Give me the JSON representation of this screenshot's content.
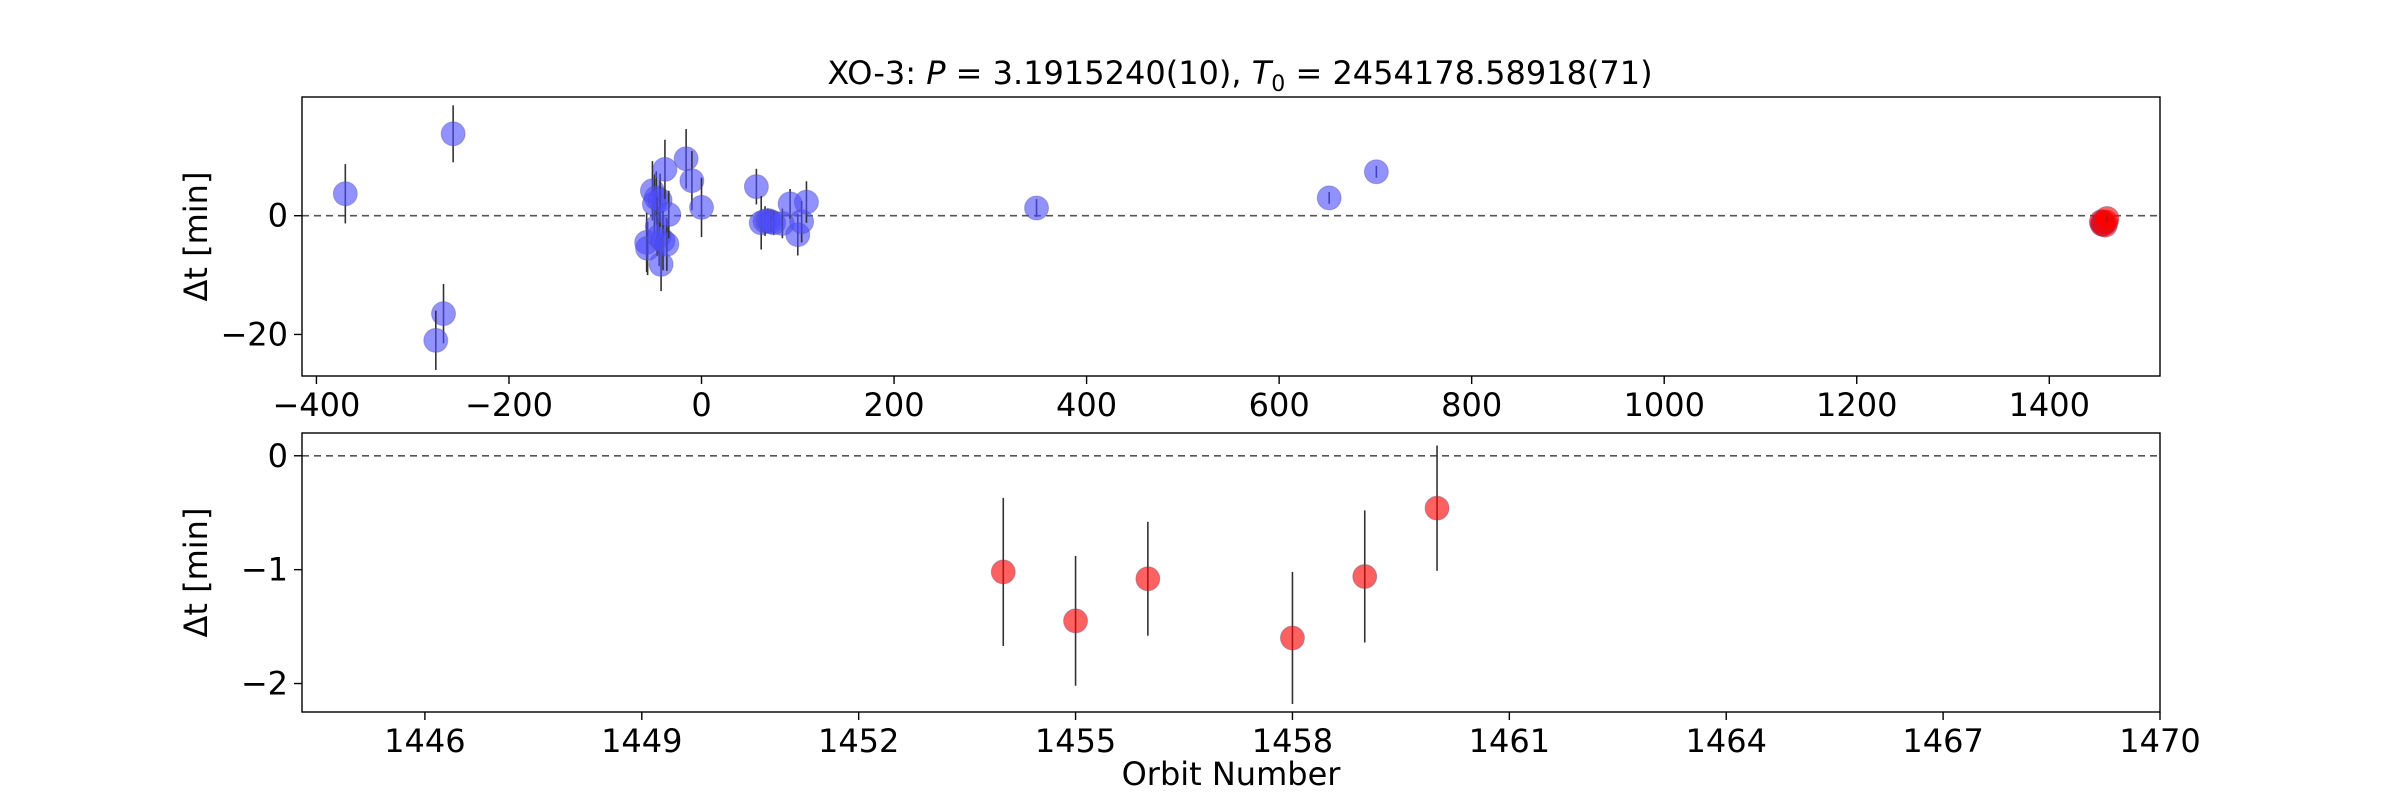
{
  "chart_data": [
    {
      "type": "scatter",
      "title_prefix": "XO-3: ",
      "title_math": [
        {
          "text": "P",
          "italic": true
        },
        {
          "text": " = 3.1915240(10), ",
          "italic": false
        },
        {
          "text": "T",
          "italic": true
        },
        {
          "text": "0",
          "sub": true
        },
        {
          "text": " = 2454178.58918(71)",
          "italic": false
        }
      ],
      "xlabel": "",
      "ylabel": "Δt [min]",
      "xlim": [
        -415,
        1515
      ],
      "ylim": [
        -27,
        20
      ],
      "xticks": [
        -400,
        -200,
        0,
        200,
        400,
        600,
        800,
        1000,
        1200,
        1400
      ],
      "yticks": [
        -20,
        0
      ],
      "reference_line": 0,
      "grid": false,
      "series": [
        {
          "color": "#4d4dff",
          "points": [
            {
              "x": -370,
              "y": 3.7,
              "err": 5.0
            },
            {
              "x": -258,
              "y": 13.8,
              "err": 4.8
            },
            {
              "x": -268,
              "y": -16.5,
              "err": 5.0
            },
            {
              "x": -276,
              "y": -21.0,
              "err": 5.0
            },
            {
              "x": -57,
              "y": -4.5,
              "err": 5.0
            },
            {
              "x": -56,
              "y": -5.5,
              "err": 4.5
            },
            {
              "x": -51,
              "y": 4.2,
              "err": 5.0
            },
            {
              "x": -49,
              "y": 2.0,
              "err": 5.0
            },
            {
              "x": -47,
              "y": 3.0,
              "err": 4.5
            },
            {
              "x": -46,
              "y": -1.8,
              "err": 5.0
            },
            {
              "x": -44,
              "y": -3.5,
              "err": 5.0
            },
            {
              "x": -43,
              "y": 2.6,
              "err": 4.5
            },
            {
              "x": -42,
              "y": -8.2,
              "err": 4.5
            },
            {
              "x": -40,
              "y": -4.2,
              "err": 5.0
            },
            {
              "x": -38,
              "y": 7.8,
              "err": 5.0
            },
            {
              "x": -36,
              "y": -4.8,
              "err": 4.5
            },
            {
              "x": -34,
              "y": 0.2,
              "err": 4.0
            },
            {
              "x": -16,
              "y": 9.6,
              "err": 5.0
            },
            {
              "x": -10,
              "y": 5.9,
              "err": 5.0
            },
            {
              "x": 0,
              "y": 1.4,
              "err": 5.0
            },
            {
              "x": 57,
              "y": 4.9,
              "err": 3.0
            },
            {
              "x": 62,
              "y": -1.2,
              "err": 4.5
            },
            {
              "x": 66,
              "y": -0.9,
              "err": 2.5
            },
            {
              "x": 69,
              "y": -0.8,
              "err": 2.0
            },
            {
              "x": 72,
              "y": -1.0,
              "err": 2.0
            },
            {
              "x": 75,
              "y": -1.2,
              "err": 2.0
            },
            {
              "x": 84,
              "y": -1.3,
              "err": 2.5
            },
            {
              "x": 92,
              "y": 2.0,
              "err": 2.5
            },
            {
              "x": 100,
              "y": -3.2,
              "err": 3.5
            },
            {
              "x": 104,
              "y": -1.0,
              "err": 3.5
            },
            {
              "x": 109,
              "y": 2.3,
              "err": 3.5
            },
            {
              "x": 348,
              "y": 1.3,
              "err": 1.5
            },
            {
              "x": 652,
              "y": 3.0,
              "err": 1.0
            },
            {
              "x": 701,
              "y": 7.4,
              "err": 1.0
            },
            {
              "x": 1456,
              "y": -1.4,
              "err": 1.0
            }
          ]
        },
        {
          "color": "#ff0000",
          "points": [
            {
              "x": 1454,
              "y": -1.02,
              "err": 0.65
            },
            {
              "x": 1455,
              "y": -1.45,
              "err": 0.57
            },
            {
              "x": 1456,
              "y": -1.08,
              "err": 0.5
            },
            {
              "x": 1458,
              "y": -1.6,
              "err": 0.58
            },
            {
              "x": 1459,
              "y": -1.06,
              "err": 0.58
            },
            {
              "x": 1460,
              "y": -0.46,
              "err": 0.55
            }
          ]
        }
      ]
    },
    {
      "type": "scatter",
      "xlabel": "Orbit Number",
      "ylabel": "Δt [min]",
      "xlim": [
        1444.3,
        1470
      ],
      "ylim": [
        -2.25,
        0.2
      ],
      "xticks": [
        1446,
        1449,
        1452,
        1455,
        1458,
        1461,
        1464,
        1467,
        1470
      ],
      "yticks": [
        -2,
        -1,
        0
      ],
      "reference_line": 0,
      "grid": false,
      "series": [
        {
          "color": "#ff0000",
          "points": [
            {
              "x": 1454,
              "y": -1.02,
              "err": 0.65
            },
            {
              "x": 1455,
              "y": -1.45,
              "err": 0.57
            },
            {
              "x": 1456,
              "y": -1.08,
              "err": 0.5
            },
            {
              "x": 1458,
              "y": -1.6,
              "err": 0.58
            },
            {
              "x": 1459,
              "y": -1.06,
              "err": 0.58
            },
            {
              "x": 1460,
              "y": -0.46,
              "err": 0.55
            }
          ]
        }
      ]
    }
  ]
}
